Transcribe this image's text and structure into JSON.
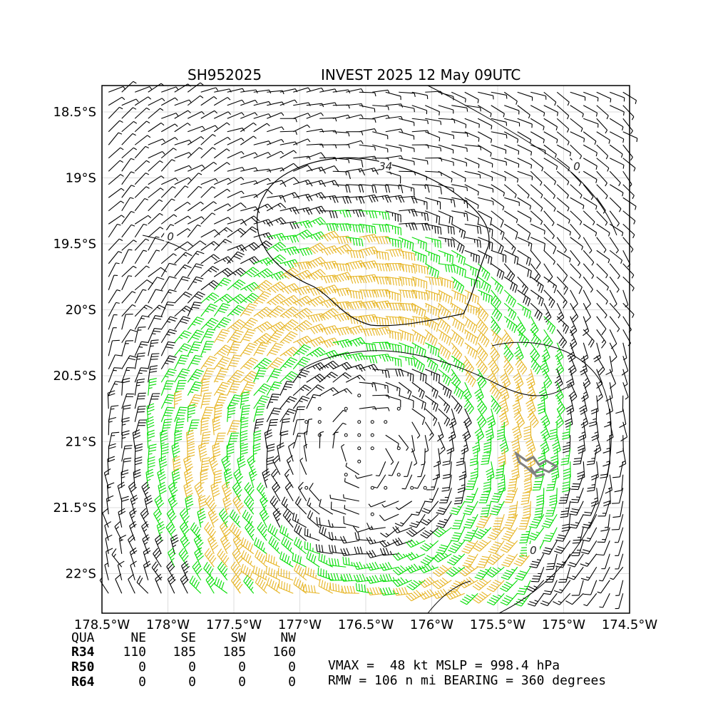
{
  "title": {
    "storm_id": "SH952025",
    "name_time": "INVEST 2025 12 May 09UTC"
  },
  "map": {
    "lon_range": [
      -178.5,
      -174.5
    ],
    "lat_range": [
      -22.3,
      -18.3
    ],
    "x_ticks": [
      {
        "value": -178.5,
        "label": "178.5°W"
      },
      {
        "value": -178.0,
        "label": "178°W"
      },
      {
        "value": -177.5,
        "label": "177.5°W"
      },
      {
        "value": -177.0,
        "label": "177°W"
      },
      {
        "value": -176.5,
        "label": "176.5°W"
      },
      {
        "value": -176.0,
        "label": "176°W"
      },
      {
        "value": -175.5,
        "label": "175.5°W"
      },
      {
        "value": -175.0,
        "label": "175°W"
      },
      {
        "value": -174.5,
        "label": "174.5°W"
      }
    ],
    "y_ticks": [
      {
        "value": -18.5,
        "label": "18.5°S"
      },
      {
        "value": -19.0,
        "label": "19°S"
      },
      {
        "value": -19.5,
        "label": "19.5°S"
      },
      {
        "value": -20.0,
        "label": "20°S"
      },
      {
        "value": -20.5,
        "label": "20.5°S"
      },
      {
        "value": -21.0,
        "label": "21°S"
      },
      {
        "value": -21.5,
        "label": "21.5°S"
      },
      {
        "value": -22.0,
        "label": "22°S"
      }
    ],
    "grid": true,
    "contour_labels": [
      {
        "text": "34",
        "lon": -176.35,
        "lat": -18.92
      },
      {
        "text": "0",
        "lon": -174.9,
        "lat": -18.92
      },
      {
        "text": "0",
        "lon": -177.98,
        "lat": -19.45
      },
      {
        "text": "0",
        "lon": -175.23,
        "lat": -21.83
      }
    ],
    "colors": {
      "calm": "#000000",
      "below_34": "#000000",
      "r34": "#00dd00",
      "r50": "#e6b422",
      "contour": "#000000",
      "land": "#808080"
    },
    "wind_field": {
      "center_lon": -176.5,
      "center_lat": -21.1,
      "rotation": "clockwise (southern hemisphere)",
      "rmw_nmi": 106,
      "vmax_kt": 48
    }
  },
  "summary_table": {
    "header": [
      "QUA",
      "NE",
      "SE",
      "SW",
      "NW"
    ],
    "rows": [
      {
        "label": "R34",
        "values": [
          "110",
          "185",
          "185",
          "160"
        ]
      },
      {
        "label": "R50",
        "values": [
          "0",
          "0",
          "0",
          "0"
        ]
      },
      {
        "label": "R64",
        "values": [
          "0",
          "0",
          "0",
          "0"
        ]
      }
    ]
  },
  "stats": {
    "line1": "VMAX =  48 kt MSLP = 998.4 hPa",
    "line2": "RMW = 106 n mi BEARING = 360 degrees"
  }
}
